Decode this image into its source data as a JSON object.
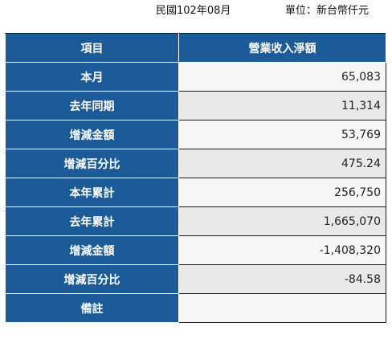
{
  "caption": {
    "date": "民國102年08月",
    "unit": "單位：新台幣仟元"
  },
  "table": {
    "headers": [
      "項目",
      "營業收入淨額"
    ],
    "rows": [
      {
        "label": "本月",
        "value": "65,083"
      },
      {
        "label": "去年同期",
        "value": "11,314"
      },
      {
        "label": "增減金額",
        "value": "53,769"
      },
      {
        "label": "增減百分比",
        "value": "475.24"
      },
      {
        "label": "本年累計",
        "value": "256,750"
      },
      {
        "label": "去年累計",
        "value": "1,665,070"
      },
      {
        "label": "增減金額",
        "value": "-1,408,320"
      },
      {
        "label": "增減百分比",
        "value": "-84.58"
      },
      {
        "label": "備註",
        "value": ""
      }
    ]
  },
  "colors": {
    "header_bg": "#1c5b97",
    "header_text": "#ffffff",
    "cell_bg_light": "#f7f7f7",
    "cell_bg_dark": "#e9e9e9"
  }
}
